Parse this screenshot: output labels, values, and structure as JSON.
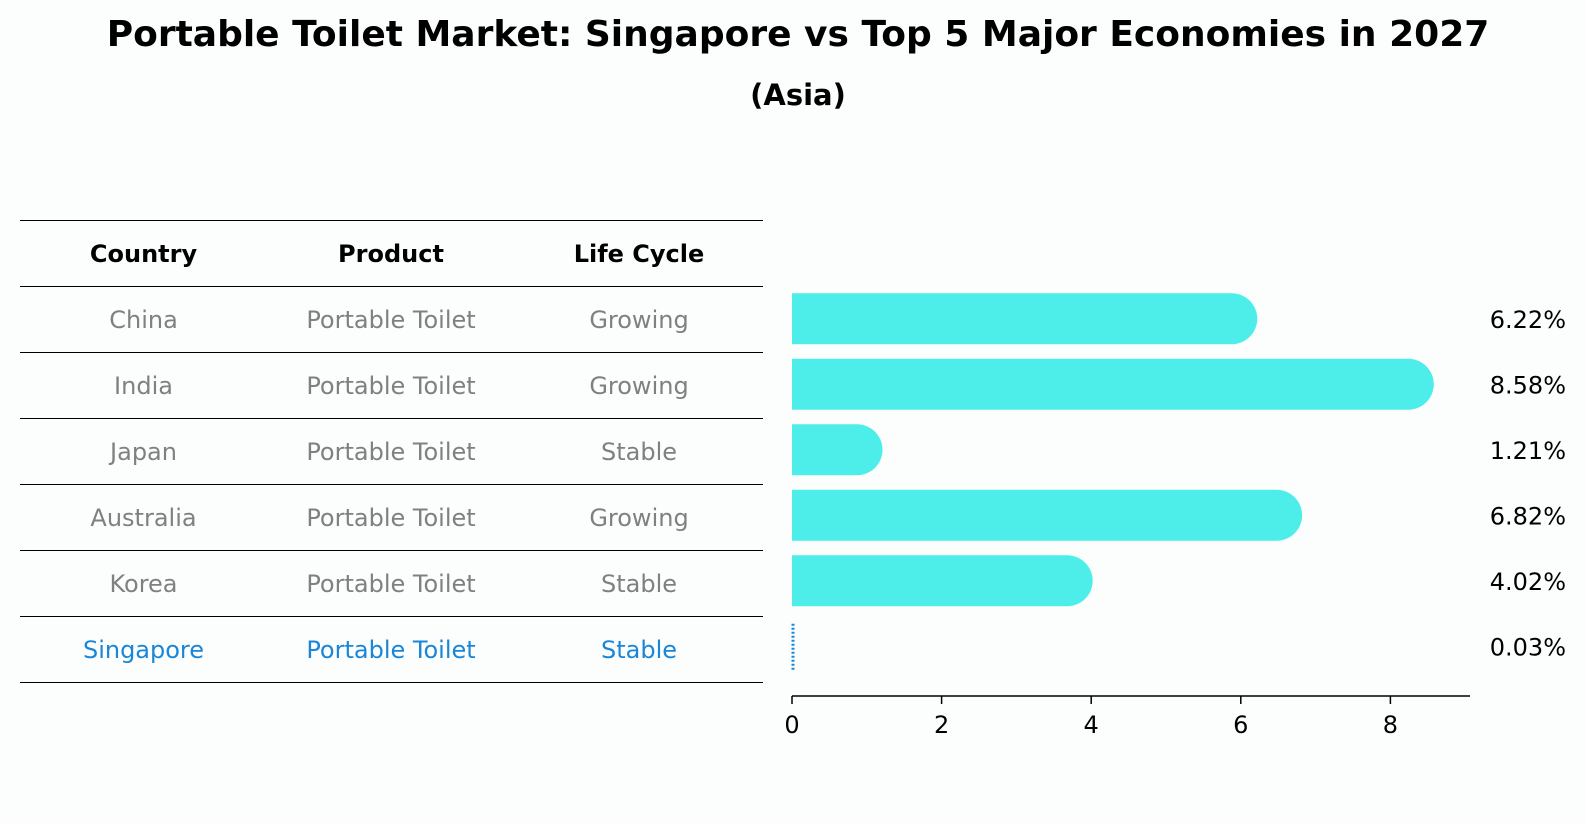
{
  "chart_data": {
    "type": "bar",
    "title": "Portable Toilet Market: Singapore vs Top 5 Major Economies in 2027",
    "subtitle": "(Asia)",
    "columns": [
      "Country",
      "Product",
      "Life Cycle"
    ],
    "rows": [
      {
        "country": "China",
        "product": "Portable Toilet",
        "life_cycle": "Growing",
        "value": 6.22,
        "label": "6.22%"
      },
      {
        "country": "India",
        "product": "Portable Toilet",
        "life_cycle": "Growing",
        "value": 8.58,
        "label": "8.58%"
      },
      {
        "country": "Japan",
        "product": "Portable Toilet",
        "life_cycle": "Stable",
        "value": 1.21,
        "label": "1.21%"
      },
      {
        "country": "Australia",
        "product": "Portable Toilet",
        "life_cycle": "Growing",
        "value": 6.82,
        "label": "6.82%"
      },
      {
        "country": "Korea",
        "product": "Portable Toilet",
        "life_cycle": "Stable",
        "value": 4.02,
        "label": "4.02%"
      },
      {
        "country": "Singapore",
        "product": "Portable Toilet",
        "life_cycle": "Stable",
        "value": 0.03,
        "label": "0.03%"
      }
    ],
    "highlight": "Singapore",
    "xlim": [
      0,
      9
    ],
    "xticks": [
      0,
      2,
      4,
      6,
      8
    ],
    "colors": {
      "bar": "#4deeea",
      "highlight": "#1a86d8",
      "muted_text": "#808080"
    }
  }
}
